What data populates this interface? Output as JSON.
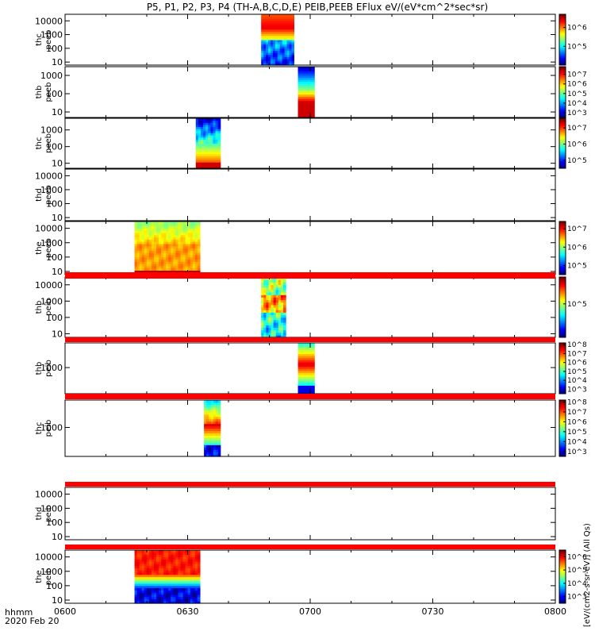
{
  "title": "P5, P1, P2, P3, P4 (TH-A,B,C,D,E) PEIB,PEEB EFlux eV/(eV*cm^2*sec*sr)",
  "time_axis": {
    "ticks": [
      "0600",
      "0630",
      "0700",
      "0730",
      "0800"
    ],
    "tick_minutes": [
      0,
      30,
      60,
      90,
      120
    ],
    "label_line1": "hhmm",
    "label_line2": "2020 Feb 20"
  },
  "colorbar_label": "[eV/(cm2-s-sr-eV)] (All Qs)",
  "chart_data": {
    "type": "heatmap",
    "x_unit": "minutes after 06:00 UT",
    "xlim": [
      0,
      120
    ],
    "y_scale": "log",
    "color_scale": "log",
    "panels": [
      {
        "label1": "thc",
        "label2": "peeb",
        "yticks": [
          "10",
          "100",
          "1000",
          "10000"
        ],
        "ytick_values": [
          10,
          100,
          1000,
          10000
        ],
        "ylim": [
          6,
          30000
        ],
        "data_start": 48,
        "data_end": 56,
        "profile": "peeb_a",
        "cbar_ticks": [
          "10^5",
          "10^6"
        ],
        "cbar_tick_exps": [
          5,
          6
        ],
        "cbar_range": [
          4,
          6.7
        ]
      },
      {
        "label1": "thb",
        "label2": "peeb",
        "yticks": [
          "10",
          "100",
          "1000"
        ],
        "ytick_values": [
          10,
          100,
          1000
        ],
        "ylim": [
          5,
          3000
        ],
        "data_start": 57,
        "data_end": 61,
        "profile": "peeb_b",
        "cbar_ticks": [
          "10^3",
          "10^4",
          "10^5",
          "10^6",
          "10^7"
        ],
        "cbar_tick_exps": [
          3,
          4,
          5,
          6,
          7
        ],
        "cbar_range": [
          2.5,
          7.8
        ]
      },
      {
        "label1": "thc",
        "label2": "peeb",
        "yticks": [
          "10",
          "100",
          "1000"
        ],
        "ytick_values": [
          10,
          100,
          1000
        ],
        "ylim": [
          5,
          5000
        ],
        "data_start": 32,
        "data_end": 38,
        "profile": "peeb_c",
        "cbar_ticks": [
          "10^5",
          "10^6",
          "10^7"
        ],
        "cbar_tick_exps": [
          5,
          6,
          7
        ],
        "cbar_range": [
          4.5,
          7.6
        ]
      },
      {
        "label1": "thd",
        "label2": "peeb",
        "yticks": [
          "10",
          "100",
          "1000",
          "10000"
        ],
        "ytick_values": [
          10,
          100,
          1000,
          10000
        ],
        "ylim": [
          6,
          30000
        ],
        "data_start": null,
        "data_end": null,
        "profile": "none",
        "cbar_ticks": [],
        "cbar_tick_exps": [],
        "cbar_range": null
      },
      {
        "label1": "the",
        "label2": "peeb",
        "yticks": [
          "10",
          "100",
          "1000",
          "10000"
        ],
        "ytick_values": [
          10,
          100,
          1000,
          10000
        ],
        "ylim": [
          6,
          30000
        ],
        "data_start": 17,
        "data_end": 33,
        "profile": "peeb_e",
        "cbar_ticks": [
          "10^5",
          "10^6",
          "10^7"
        ],
        "cbar_tick_exps": [
          5,
          6,
          7
        ],
        "cbar_range": [
          4.5,
          7.4
        ]
      },
      {
        "label1": "thb",
        "label2": "peib",
        "yticks": [
          "10",
          "100",
          "1000",
          "10000"
        ],
        "ytick_values": [
          10,
          100,
          1000,
          10000
        ],
        "ylim": [
          6,
          30000
        ],
        "data_start": 48,
        "data_end": 54,
        "profile": "peib_a",
        "cbar_ticks": [
          "10^5"
        ],
        "cbar_tick_exps": [
          5
        ],
        "cbar_range": [
          4,
          5.8
        ]
      },
      {
        "label1": "thb",
        "label2": "peib",
        "yticks": [
          "1000"
        ],
        "ytick_values": [
          1000
        ],
        "ylim": [
          150,
          6000
        ],
        "data_start": 57,
        "data_end": 61,
        "profile": "peib_b",
        "cbar_ticks": [
          "10^3",
          "10^4",
          "10^5",
          "10^6",
          "10^7",
          "10^8"
        ],
        "cbar_tick_exps": [
          3,
          4,
          5,
          6,
          7,
          8
        ],
        "cbar_range": [
          2.5,
          8.2
        ]
      },
      {
        "label1": "thc",
        "label2": "peib",
        "yticks": [
          "1000"
        ],
        "ytick_values": [
          1000
        ],
        "ylim": [
          150,
          6000
        ],
        "data_start": 34,
        "data_end": 38,
        "profile": "peib_c",
        "cbar_ticks": [
          "10^3",
          "10^4",
          "10^5",
          "10^6",
          "10^7",
          "10^8"
        ],
        "cbar_tick_exps": [
          3,
          4,
          5,
          6,
          7,
          8
        ],
        "cbar_range": [
          2.5,
          8.2
        ]
      },
      {
        "label1": "thd",
        "label2": "peib",
        "yticks": [
          "10",
          "100",
          "1000",
          "10000"
        ],
        "ytick_values": [
          10,
          100,
          1000,
          10000
        ],
        "ylim": [
          6,
          30000
        ],
        "data_start": null,
        "data_end": null,
        "profile": "none",
        "cbar_ticks": [],
        "cbar_tick_exps": [],
        "cbar_range": null
      },
      {
        "label1": "the",
        "label2": "peib",
        "yticks": [
          "10",
          "100",
          "1000",
          "10000"
        ],
        "ytick_values": [
          10,
          100,
          1000,
          10000
        ],
        "ylim": [
          6,
          30000
        ],
        "data_start": 17,
        "data_end": 33,
        "profile": "peib_e",
        "cbar_ticks": [
          "10^3",
          "10^4",
          "10^5",
          "10^6"
        ],
        "cbar_tick_exps": [
          3,
          4,
          5,
          6
        ],
        "cbar_range": [
          2.5,
          6.5
        ]
      }
    ]
  }
}
